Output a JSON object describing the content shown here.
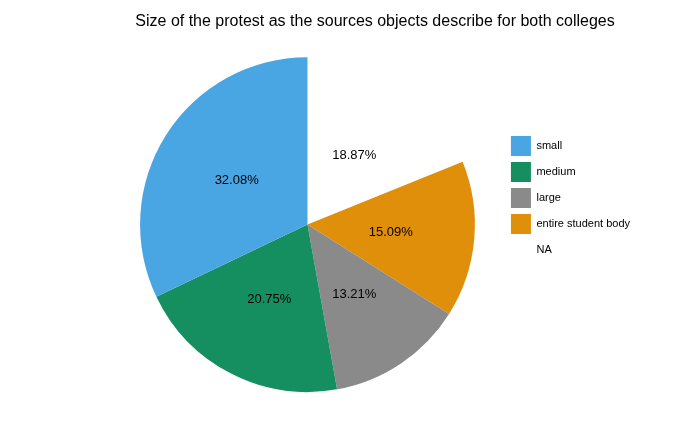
{
  "chart_data": {
    "type": "pie",
    "title": "Size of the protest as the sources objects describe for both colleges",
    "categories": [
      "small",
      "medium",
      "large",
      "entire student body",
      "NA"
    ],
    "values": [
      32.08,
      20.75,
      13.21,
      15.09,
      18.87
    ],
    "value_labels": [
      "32.08%",
      "20.75%",
      "13.21%",
      "15.09%",
      "18.87%"
    ],
    "colors": [
      "#4aa5e3",
      "#158f60",
      "#8a8a8a",
      "#df8f0a",
      "#ffffff"
    ],
    "data_labels": true,
    "legend": "right"
  }
}
